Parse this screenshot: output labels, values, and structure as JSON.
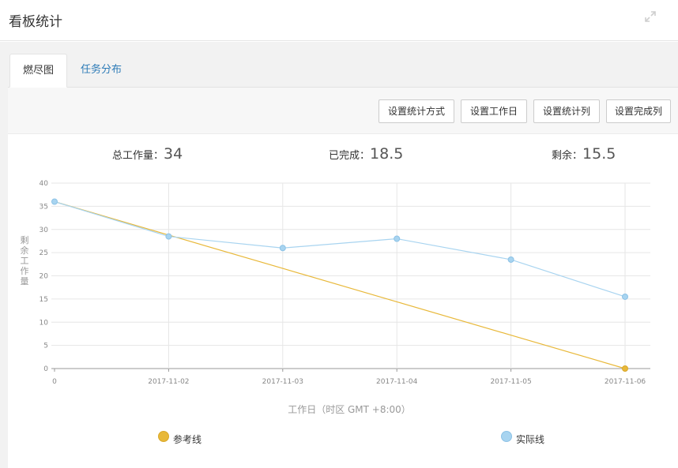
{
  "header": {
    "title": "看板统计",
    "expand_icon": "expand-icon"
  },
  "tabs": [
    {
      "label": "燃尽图",
      "active": true
    },
    {
      "label": "任务分布",
      "active": false
    }
  ],
  "toolbar": {
    "buttons": [
      "设置统计方式",
      "设置工作日",
      "设置统计列",
      "设置完成列"
    ]
  },
  "stats": {
    "total_label": "总工作量：",
    "total_value": "34",
    "done_label": "已完成：",
    "done_value": "18.5",
    "remain_label": "剩余：",
    "remain_value": "15.5"
  },
  "colors": {
    "reference": "#e8b839",
    "actual": "#a8d4f0",
    "tab_link": "#2d7bb7"
  },
  "chart_data": {
    "type": "line",
    "title": "",
    "xlabel": "工作日（时区 GMT +8:00）",
    "ylabel": "剩余工作量",
    "categories": [
      "0",
      "2017-11-02",
      "2017-11-03",
      "2017-11-04",
      "2017-11-05",
      "2017-11-06"
    ],
    "ylim": [
      0,
      40
    ],
    "yticks": [
      0,
      5,
      10,
      15,
      20,
      25,
      30,
      35,
      40
    ],
    "grid": true,
    "legend_position": "bottom",
    "series": [
      {
        "name": "参考线",
        "values": [
          36,
          28.8,
          21.6,
          14.4,
          7.2,
          0
        ],
        "markers": "last-only"
      },
      {
        "name": "实际线",
        "values": [
          36,
          28.5,
          26,
          28,
          23.5,
          15.5
        ],
        "markers": "all"
      }
    ]
  }
}
